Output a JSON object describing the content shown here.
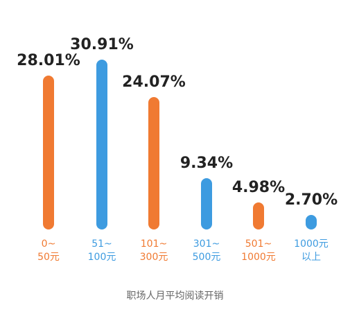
{
  "chart_data": {
    "type": "bar",
    "title": "职场人月平均阅读开销",
    "categories": [
      "0~\n50元",
      "51~\n100元",
      "101~\n300元",
      "301~\n500元",
      "501~\n1000元",
      "1000元\n以上"
    ],
    "values": [
      28.01,
      30.91,
      24.07,
      9.34,
      4.98,
      2.7
    ],
    "value_labels": [
      "28.01%",
      "30.91%",
      "24.07%",
      "9.34%",
      "4.98%",
      "2.70%"
    ],
    "colors": [
      "#f07a32",
      "#3d9be0",
      "#f07a32",
      "#3d9be0",
      "#f07a32",
      "#3d9be0"
    ]
  }
}
